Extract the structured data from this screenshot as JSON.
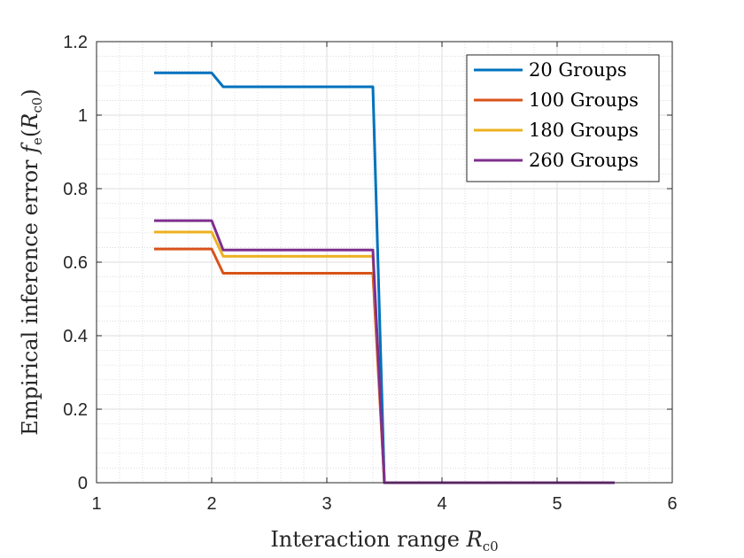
{
  "chart_data": {
    "type": "line",
    "xlabel": {
      "text": "Interaction range ",
      "var": "R",
      "sub": "c0"
    },
    "ylabel": {
      "text": "Empirical inference error ",
      "fvar": "f",
      "fsub": "e",
      "open": "(",
      "var": "R",
      "sub": "c0",
      "close": ")"
    },
    "xlim": [
      1,
      6
    ],
    "ylim": [
      0,
      1.2
    ],
    "xticks": [
      1,
      2,
      3,
      4,
      5,
      6
    ],
    "yticks": [
      0,
      0.2,
      0.4,
      0.6,
      0.8,
      1,
      1.2
    ],
    "xtick_labels": [
      "1",
      "2",
      "3",
      "4",
      "5",
      "6"
    ],
    "ytick_labels": [
      "0",
      "0.2",
      "0.4",
      "0.6",
      "0.8",
      "1",
      "1.2"
    ],
    "grid": true,
    "minor_grid": true,
    "legend_position": "top-right",
    "series": [
      {
        "name": "20 Groups",
        "color": "#0072BD",
        "x": [
          1.5,
          2.0,
          2.1,
          3.4,
          3.5,
          5.5
        ],
        "y": [
          1.115,
          1.115,
          1.077,
          1.077,
          0,
          0
        ]
      },
      {
        "name": "100 Groups",
        "color": "#D95319",
        "x": [
          1.5,
          2.0,
          2.1,
          3.4,
          3.5,
          5.5
        ],
        "y": [
          0.636,
          0.636,
          0.57,
          0.57,
          0,
          0
        ]
      },
      {
        "name": "180 Groups",
        "color": "#EDB120",
        "x": [
          1.5,
          2.0,
          2.1,
          3.4,
          3.5,
          5.5
        ],
        "y": [
          0.682,
          0.682,
          0.616,
          0.616,
          0,
          0
        ]
      },
      {
        "name": "260 Groups",
        "color": "#7E2F8E",
        "x": [
          1.5,
          2.0,
          2.1,
          3.4,
          3.5,
          5.5
        ],
        "y": [
          0.713,
          0.713,
          0.633,
          0.633,
          0,
          0
        ]
      }
    ]
  }
}
